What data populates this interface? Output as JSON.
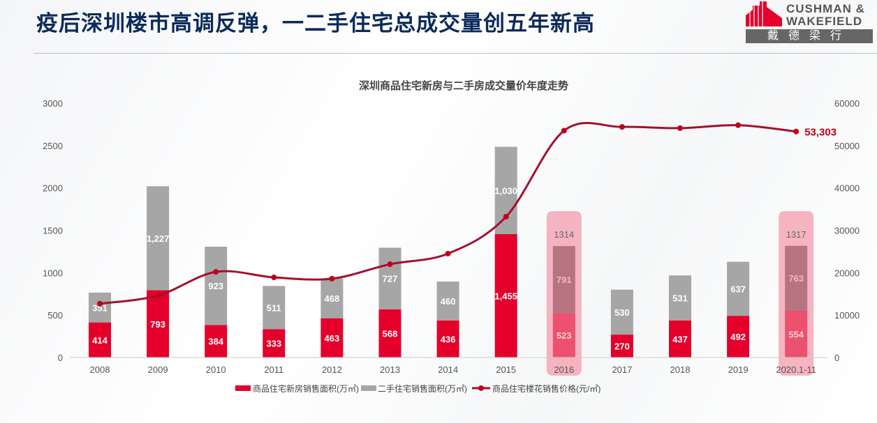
{
  "header": {
    "title": "疫后深圳楼市高调反弹，一二手住宅总成交量创五年新高",
    "logo_text": "CUSHMAN & WAKEFIELD",
    "logo_cn": "戴德梁行"
  },
  "colors": {
    "new": "#e4002b",
    "second": "#a6a6a6",
    "price": "#a50f2d",
    "highlight": "#f4a7b6",
    "title": "#0b2a5a"
  },
  "chart_data": {
    "type": "bar+line",
    "title": "深圳商品住宅新房与二手房成交量价年度走势",
    "categories": [
      "2008",
      "2009",
      "2010",
      "2011",
      "2012",
      "2013",
      "2014",
      "2015",
      "2016",
      "2017",
      "2018",
      "2019",
      "2020.1-11"
    ],
    "left_axis": {
      "range": [
        0,
        3000
      ],
      "ticks": [
        "0",
        "500",
        "1000",
        "1500",
        "2000",
        "2500",
        "3000"
      ]
    },
    "right_axis": {
      "range": [
        0,
        60000
      ],
      "ticks": [
        "0",
        "10000",
        "20000",
        "30000",
        "40000",
        "50000",
        "60000"
      ]
    },
    "stacked": true,
    "series": [
      {
        "name": "商品住宅新房销售面积(万㎡)",
        "type": "bar",
        "axis": "left",
        "values": [
          414,
          793,
          384,
          333,
          463,
          568,
          436,
          1455,
          523,
          270,
          437,
          492,
          554
        ],
        "labels": [
          "414",
          "793",
          "384",
          "333",
          "463",
          "568",
          "436",
          "1,455",
          "523",
          "270",
          "437",
          "492",
          "554"
        ]
      },
      {
        "name": "二手住宅销售面积(万㎡)",
        "type": "bar",
        "axis": "left",
        "values": [
          351,
          1227,
          923,
          511,
          468,
          727,
          460,
          1030,
          791,
          530,
          531,
          637,
          763
        ],
        "labels": [
          "351",
          "1,227",
          "923",
          "511",
          "468",
          "727",
          "460",
          "1,030",
          "791",
          "530",
          "531",
          "637",
          "763"
        ]
      },
      {
        "name": "商品住宅楼花销售价格(元/㎡)",
        "type": "line",
        "axis": "right",
        "values": [
          12700,
          14600,
          20200,
          18900,
          18600,
          22000,
          24500,
          33200,
          53500,
          54400,
          54100,
          54800,
          53303
        ],
        "end_label": "53,303"
      }
    ],
    "highlights": [
      {
        "category": "2016",
        "total_label": "1314"
      },
      {
        "category": "2020.1-11",
        "total_label": "1317"
      }
    ],
    "legend": "bottom"
  }
}
